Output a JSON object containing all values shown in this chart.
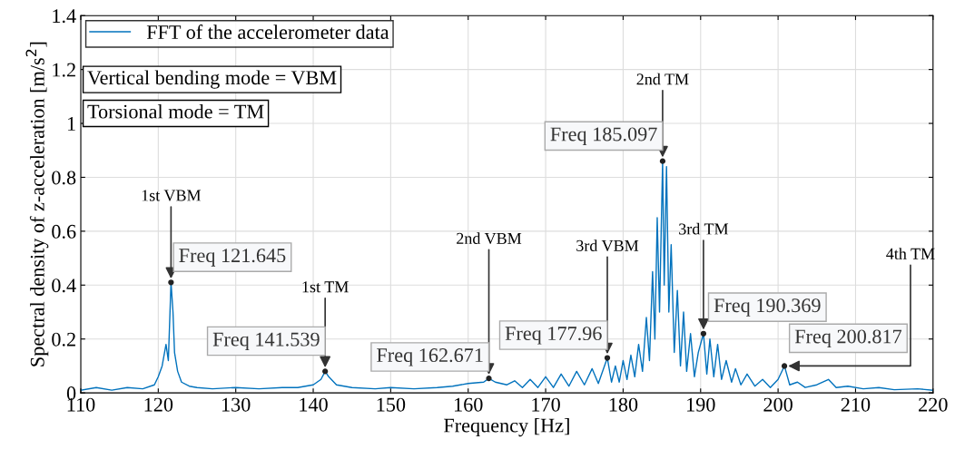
{
  "chart_data": {
    "type": "line",
    "xlabel": "Frequency [Hz]",
    "ylabel": "Spectral density of z-acceleration [m/s$^{2}$]",
    "xlim": [
      110,
      220
    ],
    "ylim": [
      0,
      1.4
    ],
    "xticks": [
      110,
      120,
      130,
      140,
      150,
      160,
      170,
      180,
      190,
      200,
      210,
      220
    ],
    "yticks": [
      0,
      0.2,
      0.4,
      0.6,
      0.8,
      1,
      1.2,
      1.4
    ],
    "grid": true,
    "legend": "top left",
    "series": [
      {
        "name": "FFT of the accelerometer data",
        "color": "#0072bd",
        "x": [
          110,
          112,
          114,
          116,
          118,
          119.5,
          120,
          120.5,
          121,
          121.3,
          121.645,
          121.9,
          122.1,
          122.5,
          123,
          124,
          125,
          127,
          130,
          133,
          136,
          138,
          140,
          141,
          141.539,
          142,
          143,
          145,
          148,
          150,
          153,
          156,
          158,
          160,
          162,
          162.671,
          163.5,
          165,
          166,
          167,
          168,
          169,
          170,
          171,
          172,
          173,
          174,
          175,
          176,
          176.8,
          177.96,
          178.5,
          179,
          179.5,
          180,
          180.5,
          181,
          181.5,
          182,
          182.5,
          183,
          183.4,
          183.8,
          184.1,
          184.4,
          184.7,
          185.097,
          185.3,
          185.6,
          185.9,
          186.2,
          186.6,
          187,
          187.4,
          187.8,
          188.2,
          188.7,
          189.2,
          189.7,
          190.369,
          190.8,
          191.2,
          191.7,
          192.2,
          192.7,
          193.3,
          194,
          194.5,
          195.2,
          196,
          197,
          198,
          199,
          200,
          200.817,
          201.5,
          202.5,
          203.5,
          205,
          206.5,
          207.5,
          209,
          211,
          213,
          215,
          218,
          220
        ],
        "values": [
          0.01,
          0.02,
          0.01,
          0.02,
          0.015,
          0.03,
          0.06,
          0.1,
          0.18,
          0.12,
          0.41,
          0.3,
          0.15,
          0.08,
          0.04,
          0.025,
          0.02,
          0.015,
          0.02,
          0.015,
          0.02,
          0.02,
          0.03,
          0.05,
          0.08,
          0.06,
          0.03,
          0.02,
          0.015,
          0.02,
          0.015,
          0.02,
          0.025,
          0.035,
          0.04,
          0.054,
          0.04,
          0.03,
          0.045,
          0.02,
          0.05,
          0.02,
          0.06,
          0.02,
          0.07,
          0.025,
          0.08,
          0.03,
          0.09,
          0.035,
          0.13,
          0.04,
          0.1,
          0.04,
          0.12,
          0.05,
          0.14,
          0.06,
          0.18,
          0.08,
          0.28,
          0.12,
          0.45,
          0.2,
          0.65,
          0.3,
          0.86,
          0.4,
          0.84,
          0.3,
          0.55,
          0.15,
          0.38,
          0.1,
          0.3,
          0.08,
          0.22,
          0.06,
          0.15,
          0.22,
          0.07,
          0.2,
          0.06,
          0.18,
          0.05,
          0.12,
          0.04,
          0.09,
          0.03,
          0.07,
          0.025,
          0.05,
          0.02,
          0.05,
          0.1,
          0.03,
          0.04,
          0.02,
          0.03,
          0.05,
          0.02,
          0.025,
          0.015,
          0.02,
          0.012,
          0.015,
          0.01
        ]
      }
    ],
    "annotations": [
      "Vertical bending mode = VBM",
      "Torsional mode = TM",
      {
        "text": "1st VBM",
        "x": 121.645,
        "y": 0.41
      },
      {
        "text": "Freq 121.645",
        "x": 121.645,
        "y": 0.41
      },
      {
        "text": "1st TM",
        "x": 141.539,
        "y": 0.08
      },
      {
        "text": "Freq 141.539",
        "x": 141.539,
        "y": 0.08
      },
      {
        "text": "2nd VBM",
        "x": 162.671,
        "y": 0.054
      },
      {
        "text": "Freq 162.671",
        "x": 162.671,
        "y": 0.054
      },
      {
        "text": "3rd VBM",
        "x": 177.96,
        "y": 0.13
      },
      {
        "text": "Freq 177.96",
        "x": 177.96,
        "y": 0.13
      },
      {
        "text": "2nd TM",
        "x": 185.097,
        "y": 0.86
      },
      {
        "text": "Freq 185.097",
        "x": 185.097,
        "y": 0.86
      },
      {
        "text": "3rd TM",
        "x": 190.369,
        "y": 0.22
      },
      {
        "text": "Freq 190.369",
        "x": 190.369,
        "y": 0.22
      },
      {
        "text": "4th TM",
        "x": 200.817,
        "y": 0.1
      },
      {
        "text": "Freq 200.817",
        "x": 200.817,
        "y": 0.1
      }
    ]
  }
}
